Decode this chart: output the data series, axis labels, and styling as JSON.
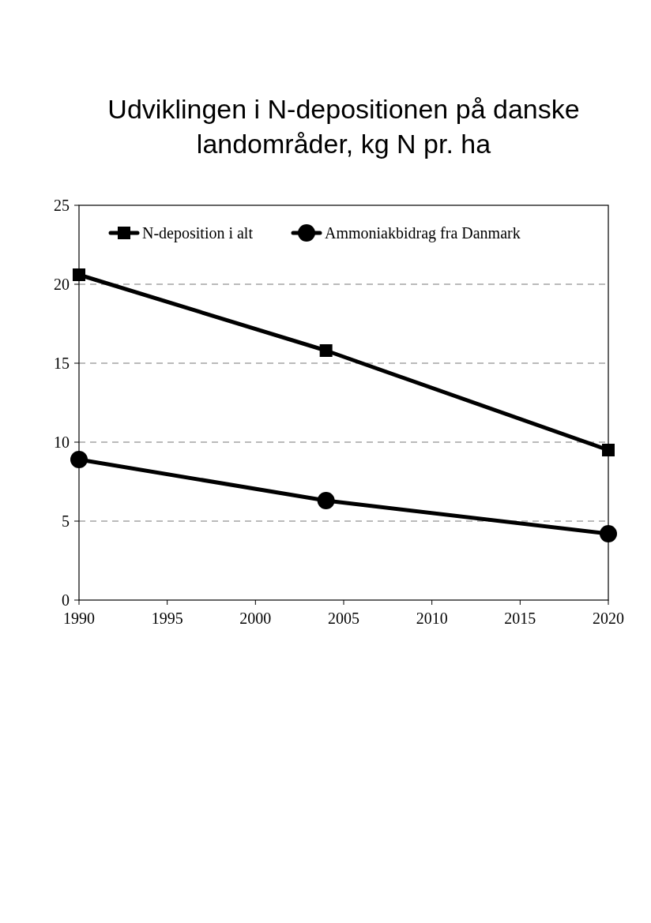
{
  "chart_data": {
    "type": "line",
    "title": "Udviklingen i N-depositionen på danske\nlandområder, kg N pr. ha",
    "x": [
      1990,
      2004,
      2020
    ],
    "series": [
      {
        "name": "N-deposition i alt",
        "color": "#000000",
        "values": [
          20.6,
          15.8,
          9.5
        ],
        "marker": "square"
      },
      {
        "name": "Ammoniakbidrag fra Danmark",
        "color": "#000000",
        "values": [
          8.9,
          6.3,
          4.2
        ],
        "marker": "circle"
      }
    ],
    "xlim": [
      1990,
      2020
    ],
    "xticks": [
      1990,
      1995,
      2000,
      2005,
      2010,
      2015,
      2020
    ],
    "ylim": [
      0,
      25
    ],
    "yticks": [
      0,
      5,
      10,
      15,
      20,
      25
    ],
    "grid": "y",
    "legend": "top left",
    "line_style": "solid"
  }
}
